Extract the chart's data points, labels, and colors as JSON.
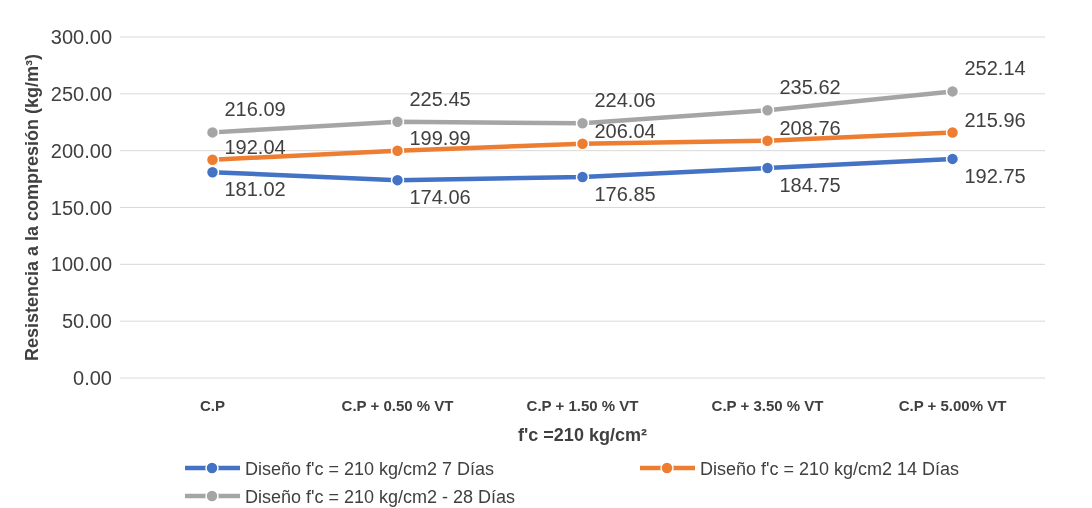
{
  "chart_data": {
    "type": "line",
    "xlabel": "f'c =210 kg/cm²",
    "ylabel": "Resistencia a la compresión (kg/m³)",
    "categories": [
      "C.P",
      "C.P + 0.50 % VT",
      "C.P + 1.50 % VT",
      "C.P + 3.50 % VT",
      "C.P + 5.00% VT"
    ],
    "series": [
      {
        "name": "Diseño f'c = 210 kg/cm2 7 Días",
        "color": "#4472c4",
        "values": [
          181.02,
          174.06,
          176.85,
          184.75,
          192.75
        ]
      },
      {
        "name": "Diseño f'c = 210 kg/cm2 14 Días",
        "color": "#ed7d31",
        "values": [
          192.04,
          199.99,
          206.04,
          208.76,
          215.96
        ]
      },
      {
        "name": "Diseño f'c = 210 kg/cm2 - 28 Días",
        "color": "#a5a5a5",
        "values": [
          216.09,
          225.45,
          224.06,
          235.62,
          252.14
        ]
      }
    ],
    "ylim": [
      0,
      300
    ],
    "yticks": [
      {
        "value": 0,
        "label": "0.00"
      },
      {
        "value": 50,
        "label": "50.00"
      },
      {
        "value": 100,
        "label": "100.00"
      },
      {
        "value": 150,
        "label": "150.00"
      },
      {
        "value": 200,
        "label": "200.00"
      },
      {
        "value": 250,
        "label": "250.00"
      },
      {
        "value": 300,
        "label": "300.00"
      }
    ],
    "grid": "y",
    "legend": "bottom",
    "marker": "circle",
    "line_style": "solid",
    "data_labels": true
  }
}
